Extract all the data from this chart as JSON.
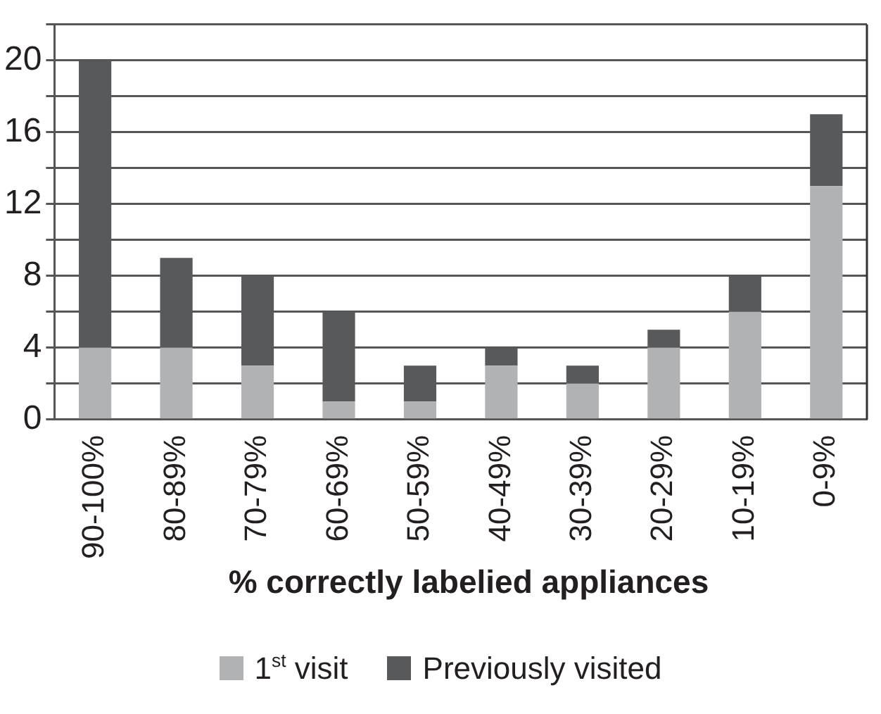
{
  "chart_data": {
    "type": "bar",
    "stacked": true,
    "xlabel": "% correctly labelied appliances",
    "categories": [
      "90-100%",
      "80-89%",
      "70-79%",
      "60-69%",
      "50-59%",
      "40-49%",
      "30-39%",
      "20-29%",
      "10-19%",
      "0-9%"
    ],
    "series": [
      {
        "name": "1$^{st}$ visit",
        "color": "#b1b2b4",
        "values": [
          4,
          4,
          3,
          1,
          1,
          3,
          2,
          4,
          6,
          13
        ]
      },
      {
        "name": "Previously visited",
        "color": "#58595b",
        "values": [
          16,
          5,
          5,
          5,
          2,
          1,
          1,
          1,
          2,
          4
        ]
      }
    ],
    "ylim": [
      0,
      22
    ],
    "yticks": [
      0,
      {
        "value": 2,
        "label": null
      },
      4,
      {
        "value": 6,
        "label": null
      },
      8,
      {
        "value": 10,
        "label": null
      },
      12,
      {
        "value": 14,
        "label": null
      },
      16,
      {
        "value": 18,
        "label": null
      },
      20,
      {
        "value": 22,
        "label": null
      }
    ],
    "grid": "y",
    "legend": "bottom"
  }
}
